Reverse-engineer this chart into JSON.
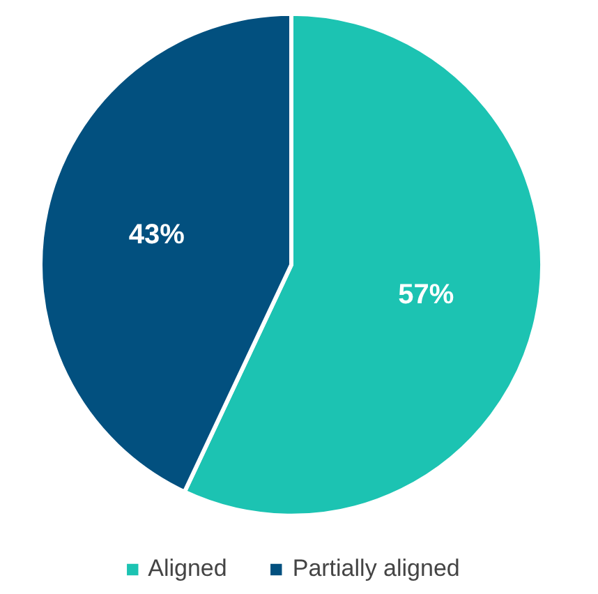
{
  "chart_data": {
    "type": "pie",
    "categories": [
      "Aligned",
      "Partially aligned"
    ],
    "values": [
      57,
      43
    ],
    "colors": [
      "#1cc3b2",
      "#02507f"
    ],
    "data_labels": true,
    "value_labels": [
      "57%",
      "43%"
    ],
    "legend": "bottom"
  }
}
